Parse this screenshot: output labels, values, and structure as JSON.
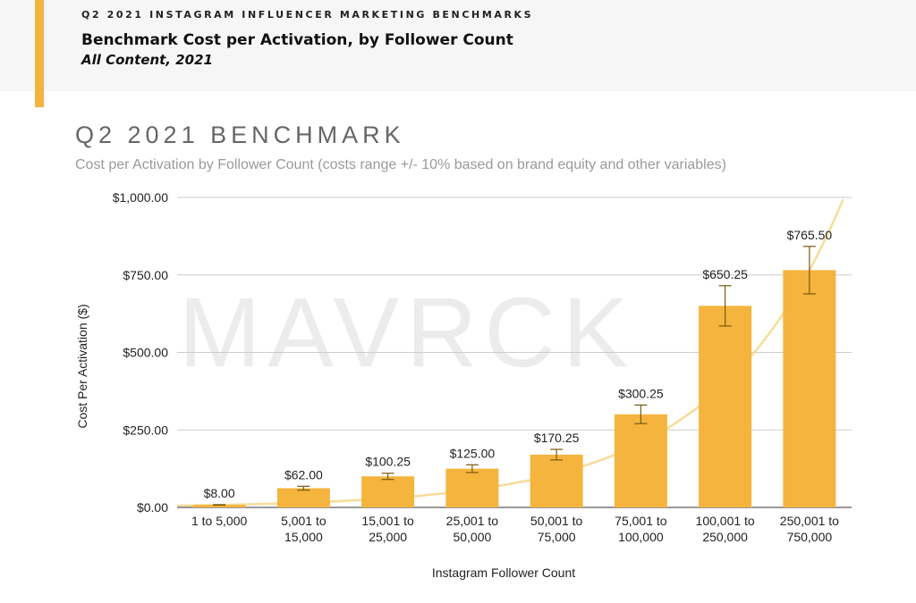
{
  "header": {
    "kicker": "Q2 2021 INSTAGRAM INFLUENCER MARKETING BENCHMARKS",
    "headline": "Benchmark Cost per Activation, by Follower Count",
    "subheadline": "All Content, 2021"
  },
  "watermark": "MAVRCK",
  "colors": {
    "accent": "#f4b43d",
    "bar": "#f4b43d",
    "trendline": "#f7dc98",
    "error_bar": "#7a5a10",
    "grid": "#cccccc",
    "header_bg": "#f6f6f6"
  },
  "chart_data": {
    "type": "bar",
    "title": "Q2 2021 BENCHMARK",
    "subtitle": "Cost per Activation by Follower Count (costs range +/- 10% based on brand equity and other variables)",
    "xlabel": "Instagram Follower Count",
    "ylabel": "Cost Per Activation ($)",
    "ylim": [
      0,
      1000
    ],
    "yticks": [
      0,
      250,
      500,
      750,
      1000
    ],
    "ytick_labels": [
      "$0.00",
      "$250.00",
      "$500.00",
      "$750.00",
      "$1,000.00"
    ],
    "grid": true,
    "error_bars": "+/- 10%",
    "trendline": "exponential",
    "categories": [
      [
        "1 to 5,000"
      ],
      [
        "5,001 to",
        "15,000"
      ],
      [
        "15,001 to",
        "25,000"
      ],
      [
        "25,001 to",
        "50,000"
      ],
      [
        "50,001 to",
        "75,000"
      ],
      [
        "75,001 to",
        "100,000"
      ],
      [
        "100,001 to",
        "250,000"
      ],
      [
        "250,001 to",
        "750,000"
      ]
    ],
    "values": [
      8.0,
      62.0,
      100.25,
      125.0,
      170.25,
      300.25,
      650.25,
      765.5
    ],
    "data_labels": [
      "$8.00",
      "$62.00",
      "$100.25",
      "$125.00",
      "$170.25",
      "$300.25",
      "$650.25",
      "$765.50"
    ]
  }
}
